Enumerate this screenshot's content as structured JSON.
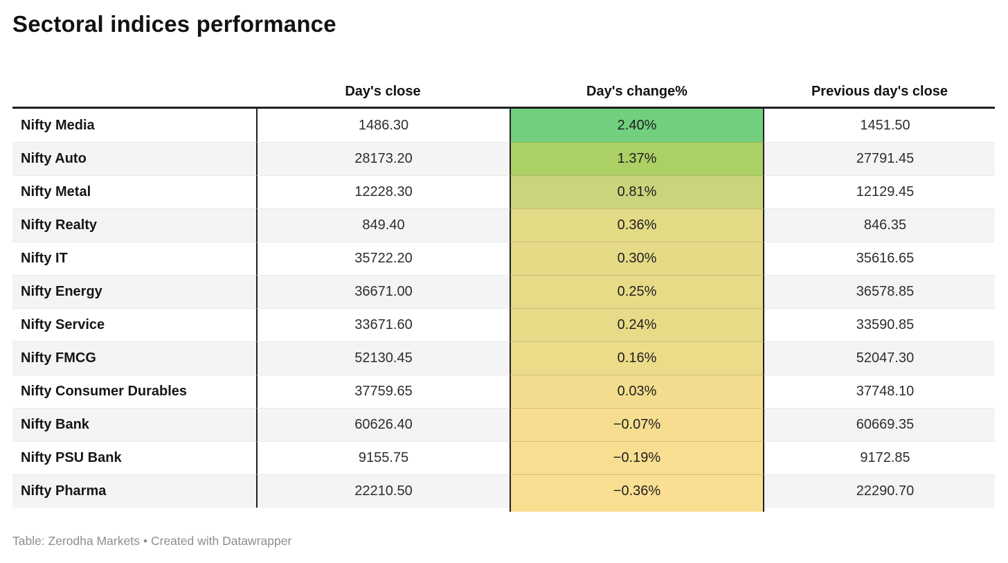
{
  "title": "Sectoral indices performance",
  "chart_data": {
    "type": "table",
    "title": "Sectoral indices performance",
    "columns": [
      "",
      "Day's close",
      "Day's change%",
      "Previous day's close"
    ],
    "rows": [
      {
        "label": "Nifty Media",
        "close": "1486.30",
        "change": "2.40%",
        "prev": "1451.50",
        "color": "#72cf7d"
      },
      {
        "label": "Nifty Auto",
        "close": "28173.20",
        "change": "1.37%",
        "prev": "27791.45",
        "color": "#abd166"
      },
      {
        "label": "Nifty Metal",
        "close": "12228.30",
        "change": "0.81%",
        "prev": "12129.45",
        "color": "#cad47c"
      },
      {
        "label": "Nifty Realty",
        "close": "849.40",
        "change": "0.36%",
        "prev": "846.35",
        "color": "#e3da85"
      },
      {
        "label": "Nifty IT",
        "close": "35722.20",
        "change": "0.30%",
        "prev": "35616.65",
        "color": "#e5da86"
      },
      {
        "label": "Nifty Energy",
        "close": "36671.00",
        "change": "0.25%",
        "prev": "36578.85",
        "color": "#e7db87"
      },
      {
        "label": "Nifty Service",
        "close": "33671.60",
        "change": "0.24%",
        "prev": "33590.85",
        "color": "#e8db88"
      },
      {
        "label": "Nifty FMCG",
        "close": "52130.45",
        "change": "0.16%",
        "prev": "52047.30",
        "color": "#ecdc8a"
      },
      {
        "label": "Nifty Consumer Durables",
        "close": "37759.65",
        "change": "0.03%",
        "prev": "37748.10",
        "color": "#f3dc8d"
      },
      {
        "label": "Nifty Bank",
        "close": "60626.40",
        "change": "−0.07%",
        "prev": "60669.35",
        "color": "#f6dd8f"
      },
      {
        "label": "Nifty PSU Bank",
        "close": "9155.75",
        "change": "−0.19%",
        "prev": "9172.85",
        "color": "#f8de90"
      },
      {
        "label": "Nifty Pharma",
        "close": "22210.50",
        "change": "−0.36%",
        "prev": "22290.70",
        "color": "#fade92"
      }
    ],
    "layout": {
      "striped": true,
      "heatmap_column": "Day's change%",
      "heatmap_scale_top_to_bottom": [
        "#72cf7d",
        "#fade92"
      ]
    }
  },
  "footer": {
    "source": "Table: Zerodha Markets",
    "separator": "•",
    "credit": "Created with Datawrapper"
  },
  "colors": {
    "border_dark": "#1e1e1e",
    "row_stripe": "#f4f4f4",
    "row_divider": "#e8e8e8",
    "footer_text": "#8e8e8e",
    "title_text": "#121212"
  }
}
